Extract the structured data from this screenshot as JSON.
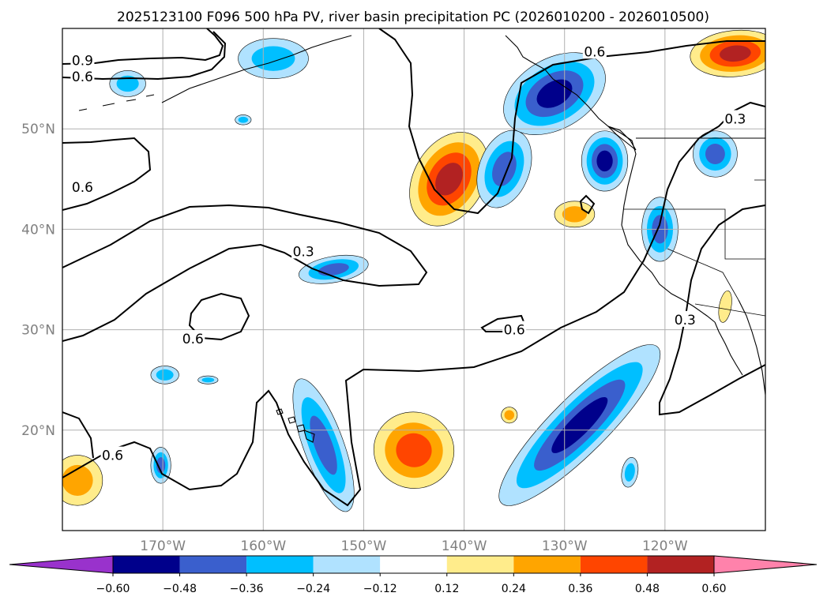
{
  "chart_data": {
    "type": "map-contour",
    "title": "2025123100 F096 500 hPa PV, river basin precipitation PC (2026010200 - 2026010500)",
    "lon_range": [
      -180,
      -110
    ],
    "lat_range": [
      10,
      60
    ],
    "lon_ticks": [
      -170,
      -160,
      -150,
      -140,
      -130,
      -120
    ],
    "lon_tick_labels": [
      "170°W",
      "160°W",
      "150°W",
      "140°W",
      "130°W",
      "120°W"
    ],
    "lat_ticks": [
      20,
      30,
      40,
      50
    ],
    "lat_tick_labels": [
      "20°N",
      "30°N",
      "40°N",
      "50°N"
    ],
    "pv_contour_levels": [
      0.3,
      0.6,
      0.9
    ],
    "pv_contour_labels": [
      {
        "text": "0.9",
        "lon": -178,
        "lat": 56.8
      },
      {
        "text": "0.6",
        "lon": -178,
        "lat": 55.2
      },
      {
        "text": "0.6",
        "lon": -178,
        "lat": 44.2
      },
      {
        "text": "0.3",
        "lon": -156,
        "lat": 37.8
      },
      {
        "text": "0.6",
        "lon": -167,
        "lat": 29.1
      },
      {
        "text": "0.6",
        "lon": -175,
        "lat": 17.5
      },
      {
        "text": "0.6",
        "lon": -135,
        "lat": 30.0
      },
      {
        "text": "0.6",
        "lon": -127,
        "lat": 57.7
      },
      {
        "text": "0.3",
        "lon": -113,
        "lat": 51.0
      },
      {
        "text": "0.3",
        "lon": -118,
        "lat": 31.0
      }
    ],
    "colorbar": {
      "ticks": [
        -0.6,
        -0.48,
        -0.36,
        -0.24,
        -0.12,
        0.12,
        0.24,
        0.36,
        0.48,
        0.6
      ],
      "tick_labels": [
        "−0.60",
        "−0.48",
        "−0.36",
        "−0.24",
        "−0.12",
        "0.12",
        "0.24",
        "0.36",
        "0.48",
        "0.60"
      ],
      "colors": [
        "#9932cc",
        "#00008b",
        "#3a5fcd",
        "#00bfff",
        "#b0e2ff",
        "#ffffff",
        "#ffec8b",
        "#ffa500",
        "#ff4500",
        "#b22222",
        "#ff82ab"
      ],
      "extend": "both"
    },
    "precip_anomalies": [
      {
        "lon": -141.5,
        "lat": 45.0,
        "rlon": 3.5,
        "rlat": 5.0,
        "rot": 30,
        "value": 0.48
      },
      {
        "lon": -145.0,
        "lat": 18.0,
        "rlon": 4.0,
        "rlat": 3.8,
        "rot": 10,
        "value": 0.36
      },
      {
        "lon": -113.0,
        "lat": 57.5,
        "rlon": 4.5,
        "rlat": 2.3,
        "rot": -5,
        "value": 0.48
      },
      {
        "lon": -178.5,
        "lat": 15.0,
        "rlon": 2.5,
        "rlat": 2.5,
        "rot": 0,
        "value": 0.24
      },
      {
        "lon": -129.0,
        "lat": 41.5,
        "rlon": 2.0,
        "rlat": 1.3,
        "rot": 0,
        "value": 0.24
      },
      {
        "lon": -135.5,
        "lat": 21.5,
        "rlon": 0.8,
        "rlat": 0.8,
        "rot": 0,
        "value": 0.24
      },
      {
        "lon": -114.0,
        "lat": 32.3,
        "rlon": 0.6,
        "rlat": 1.6,
        "rot": 10,
        "value": 0.12
      },
      {
        "lon": -131.0,
        "lat": 53.5,
        "rlon": 5.5,
        "rlat": 3.5,
        "rot": -30,
        "value": -0.48
      },
      {
        "lon": -136.0,
        "lat": 46.0,
        "rlon": 2.5,
        "rlat": 4.0,
        "rot": 20,
        "value": -0.36
      },
      {
        "lon": -126.0,
        "lat": 46.8,
        "rlon": 2.3,
        "rlat": 3.0,
        "rot": 0,
        "value": -0.48
      },
      {
        "lon": -115.0,
        "lat": 47.5,
        "rlon": 2.2,
        "rlat": 2.3,
        "rot": 0,
        "value": -0.36
      },
      {
        "lon": -120.5,
        "lat": 40.0,
        "rlon": 1.8,
        "rlat": 3.2,
        "rot": 0,
        "value": -0.36
      },
      {
        "lon": -128.5,
        "lat": 20.5,
        "rlon": 11.0,
        "rlat": 2.8,
        "rot": -45,
        "value": -0.48
      },
      {
        "lon": -154.0,
        "lat": 18.5,
        "rlon": 2.0,
        "rlat": 7.0,
        "rot": -20,
        "value": -0.36
      },
      {
        "lon": -159.0,
        "lat": 57.0,
        "rlon": 3.5,
        "rlat": 2.0,
        "rot": 0,
        "value": -0.24
      },
      {
        "lon": -173.5,
        "lat": 54.5,
        "rlon": 1.8,
        "rlat": 1.3,
        "rot": 0,
        "value": -0.24
      },
      {
        "lon": -153.0,
        "lat": 36.0,
        "rlon": 3.5,
        "rlat": 1.3,
        "rot": -10,
        "value": -0.36
      },
      {
        "lon": -169.8,
        "lat": 25.5,
        "rlon": 1.4,
        "rlat": 0.9,
        "rot": 0,
        "value": -0.24
      },
      {
        "lon": -165.5,
        "lat": 25.0,
        "rlon": 1.0,
        "rlat": 0.4,
        "rot": 0,
        "value": -0.24
      },
      {
        "lon": -170.2,
        "lat": 16.5,
        "rlon": 1.0,
        "rlat": 1.8,
        "rot": 0,
        "value": -0.36
      },
      {
        "lon": -123.5,
        "lat": 15.8,
        "rlon": 0.8,
        "rlat": 1.5,
        "rot": 10,
        "value": -0.24
      },
      {
        "lon": -162.0,
        "lat": 50.9,
        "rlon": 0.8,
        "rlat": 0.5,
        "rot": 0,
        "value": -0.24
      }
    ]
  }
}
